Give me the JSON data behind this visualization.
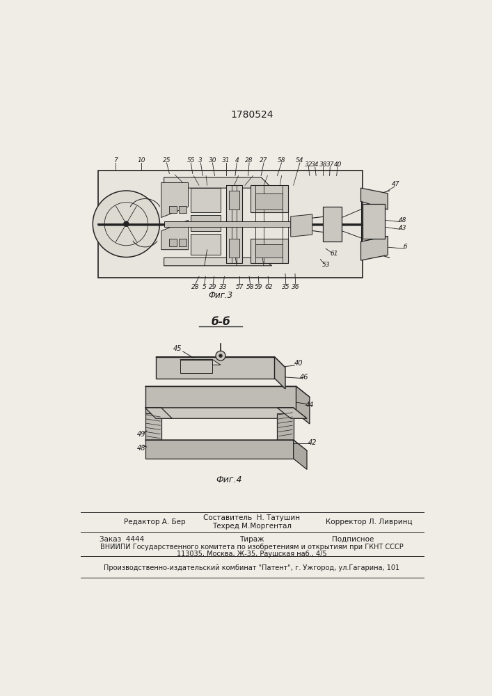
{
  "patent_number": "1780524",
  "fig3_caption": "Фиг.3",
  "fig4_caption": "Фиг.4",
  "section_label": "б-б",
  "editor_line": "Редактор А. Бер",
  "composer_line1": "Составитель  Н. Татушин",
  "composer_line2": "Техред М.Моргентал",
  "corrector_line": "Корректор Л. Ливринц",
  "order_line": "Заказ  4444",
  "tirazh_line": "Тираж",
  "podpisnoe_line": "Подписное",
  "vniiipi_line": "ВНИИПИ Государственногo комитета по изобретениям и открытиям при ГКНТ СССР",
  "address_line": "113035, Москва, Ж-35, Раушская наб., 4/5",
  "factory_line": "Производственно-издательский комбинат \"Патент\", г. Ужгород, ул.Гагарина, 101",
  "bg_color": "#f0ede6",
  "text_color": "#1a1a1a",
  "line_color": "#222222"
}
